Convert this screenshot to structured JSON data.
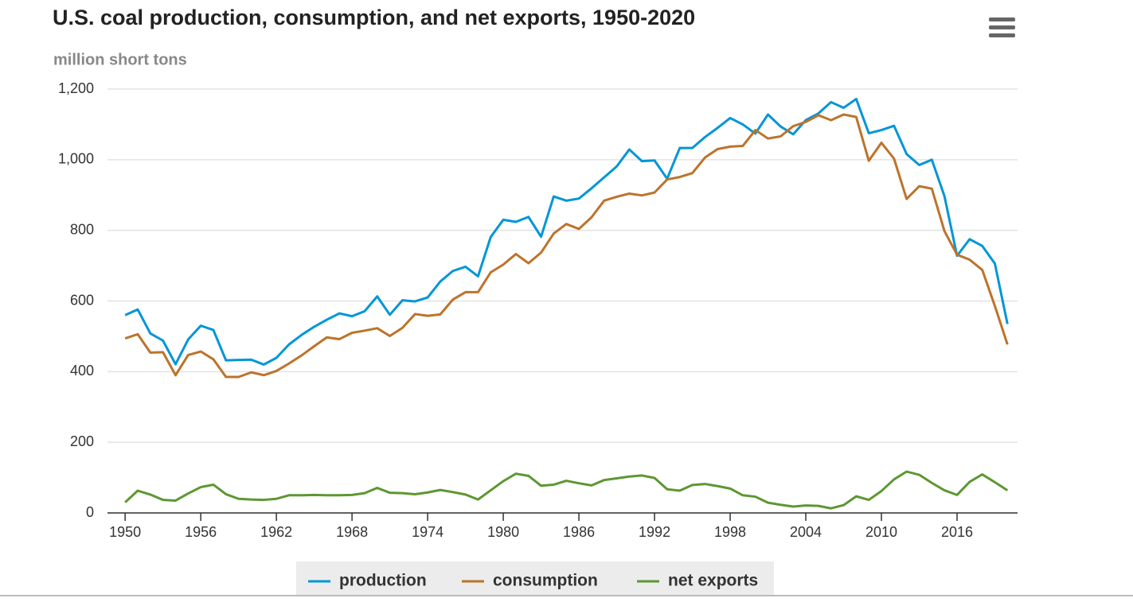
{
  "chart_data": {
    "type": "line",
    "title": "U.S. coal production, consumption, and net exports, 1950-2020",
    "subtitle": "million short tons",
    "x": [
      1950,
      1951,
      1952,
      1953,
      1954,
      1955,
      1956,
      1957,
      1958,
      1959,
      1960,
      1961,
      1962,
      1963,
      1964,
      1965,
      1966,
      1967,
      1968,
      1969,
      1970,
      1971,
      1972,
      1973,
      1974,
      1975,
      1976,
      1977,
      1978,
      1979,
      1980,
      1981,
      1982,
      1983,
      1984,
      1985,
      1986,
      1987,
      1988,
      1989,
      1990,
      1991,
      1992,
      1993,
      1994,
      1995,
      1996,
      1997,
      1998,
      1999,
      2000,
      2001,
      2002,
      2003,
      2004,
      2005,
      2006,
      2007,
      2008,
      2009,
      2010,
      2011,
      2012,
      2013,
      2014,
      2015,
      2016,
      2017,
      2018,
      2019,
      2020
    ],
    "series": [
      {
        "name": "production",
        "color": "#0096d7",
        "values": [
          560,
          576,
          508,
          488,
          421,
          491,
          530,
          518,
          432,
          433,
          434,
          420,
          439,
          477,
          504,
          527,
          547,
          565,
          557,
          571,
          613,
          561,
          602,
          599,
          610,
          655,
          685,
          697,
          670,
          781,
          830,
          824,
          838,
          782,
          896,
          884,
          890,
          919,
          950,
          981,
          1029,
          996,
          998,
          946,
          1033,
          1033,
          1064,
          1090,
          1118,
          1100,
          1074,
          1128,
          1094,
          1072,
          1112,
          1131,
          1163,
          1147,
          1172,
          1075,
          1084,
          1096,
          1016,
          985,
          1000,
          897,
          728,
          775,
          756,
          706,
          535
        ]
      },
      {
        "name": "consumption",
        "color": "#bd732a",
        "values": [
          494,
          506,
          454,
          455,
          390,
          447,
          457,
          435,
          385,
          385,
          398,
          390,
          402,
          423,
          446,
          472,
          497,
          492,
          510,
          516,
          523,
          501,
          524,
          563,
          558,
          562,
          604,
          625,
          625,
          681,
          703,
          733,
          707,
          737,
          791,
          818,
          804,
          837,
          884,
          895,
          904,
          899,
          907,
          944,
          951,
          962,
          1006,
          1030,
          1037,
          1039,
          1084,
          1060,
          1066,
          1095,
          1107,
          1126,
          1112,
          1128,
          1121,
          997,
          1048,
          1003,
          889,
          925,
          918,
          798,
          731,
          717,
          688,
          586,
          477
        ]
      },
      {
        "name": "net exports",
        "color": "#5d9732",
        "values": [
          30,
          63,
          52,
          37,
          35,
          55,
          73,
          80,
          53,
          40,
          38,
          37,
          40,
          50,
          50,
          51,
          50,
          50,
          51,
          56,
          71,
          57,
          56,
          53,
          58,
          65,
          59,
          52,
          38,
          64,
          90,
          111,
          105,
          77,
          80,
          91,
          84,
          78,
          93,
          98,
          103,
          106,
          99,
          67,
          63,
          79,
          82,
          76,
          69,
          50,
          46,
          29,
          23,
          18,
          21,
          20,
          13,
          22,
          47,
          37,
          62,
          95,
          117,
          108,
          85,
          64,
          51,
          88,
          109,
          87,
          64
        ]
      }
    ],
    "xlim": [
      1948.6,
      2020.8
    ],
    "xticks": [
      1950,
      1956,
      1962,
      1968,
      1974,
      1980,
      1986,
      1992,
      1998,
      2004,
      2010,
      2016
    ],
    "ylim": [
      0,
      1200
    ],
    "yticks": [
      0,
      200,
      400,
      600,
      800,
      {
        "value": 1000,
        "label": "1,000"
      },
      {
        "value": 1200,
        "label": "1,200"
      }
    ],
    "grid": true
  }
}
